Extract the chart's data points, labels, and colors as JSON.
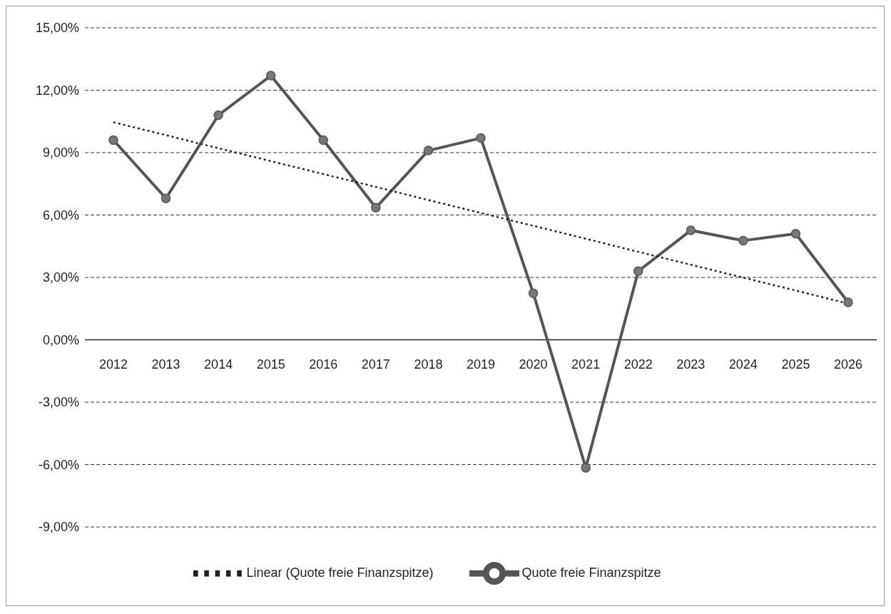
{
  "chart_data": {
    "type": "line",
    "categories": [
      "2012",
      "2013",
      "2014",
      "2015",
      "2016",
      "2017",
      "2018",
      "2019",
      "2020",
      "2021",
      "2022",
      "2023",
      "2024",
      "2025",
      "2026"
    ],
    "series": [
      {
        "name": "Quote freie Finanzspitze",
        "color": "#555555",
        "marker": "circle",
        "line_style": "solid",
        "values": [
          9.6,
          6.8,
          10.8,
          12.7,
          9.6,
          6.35,
          9.1,
          9.7,
          2.24,
          -6.15,
          3.3,
          5.26,
          4.77,
          5.1,
          1.8
        ]
      },
      {
        "name": "Linear (Quote freie Finanzspitze)",
        "color": "#222222",
        "marker": "none",
        "line_style": "dotted",
        "values": [
          10.46,
          9.84,
          9.21,
          8.59,
          7.97,
          7.35,
          6.72,
          6.1,
          5.48,
          4.86,
          4.23,
          3.61,
          2.99,
          2.37,
          1.74
        ]
      }
    ],
    "ylim": [
      -9,
      15
    ],
    "yticks": [
      {
        "value": -9,
        "label": "-9,00%"
      },
      {
        "value": -6,
        "label": "-6,00%"
      },
      {
        "value": -3,
        "label": "-3,00%"
      },
      {
        "value": 0,
        "label": "0,00%"
      },
      {
        "value": 3,
        "label": "3,00%"
      },
      {
        "value": 6,
        "label": "6,00%"
      },
      {
        "value": 9,
        "label": "9,00%"
      },
      {
        "value": 12,
        "label": "12,00%"
      },
      {
        "value": 15,
        "label": "15,00%"
      }
    ],
    "grid": "y",
    "legend": "bottom"
  }
}
